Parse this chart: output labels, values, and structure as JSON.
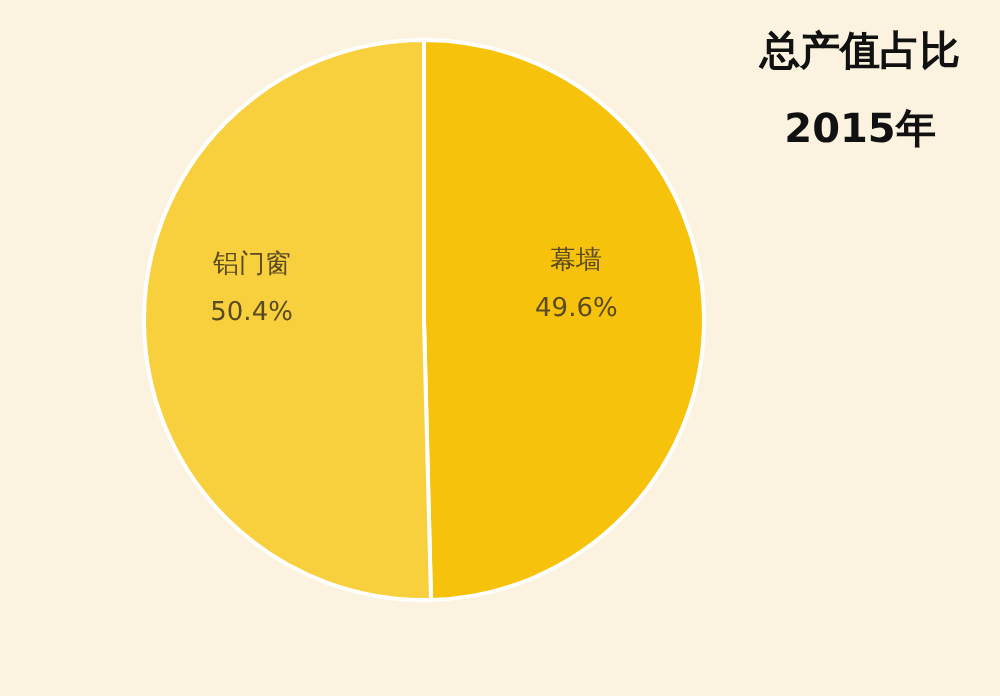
{
  "chart_data": {
    "type": "pie",
    "title": "总产值占比",
    "subtitle": "2015年",
    "categories": [
      "幕墙",
      "铝门窗"
    ],
    "values": [
      49.6,
      50.4
    ],
    "colors": [
      "#f6c20c",
      "#f8d03e"
    ],
    "value_labels": [
      "49.6%",
      "50.4%"
    ]
  }
}
